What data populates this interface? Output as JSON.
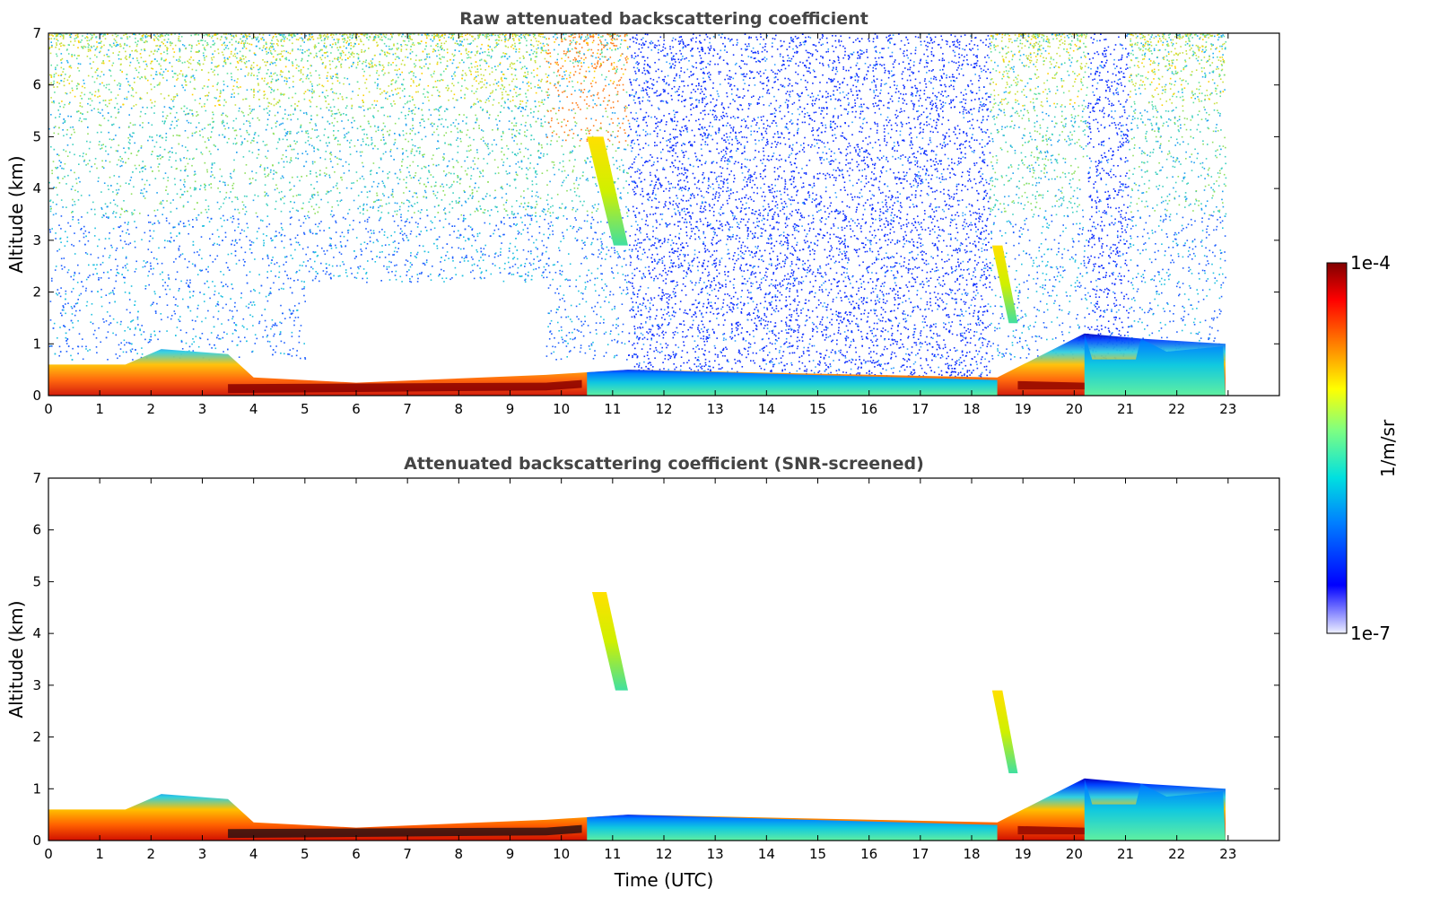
{
  "chart_data": [
    {
      "type": "heatmap",
      "title": "Raw attenuated backscattering coefficient",
      "xlabel": "",
      "ylabel": "Altitude (km)",
      "xlim": [
        0,
        24
      ],
      "ylim": [
        0,
        7
      ],
      "x_ticks": [
        "0",
        "1",
        "2",
        "3",
        "4",
        "5",
        "6",
        "7",
        "8",
        "9",
        "10",
        "11",
        "12",
        "13",
        "14",
        "15",
        "16",
        "17",
        "18",
        "19",
        "20",
        "21",
        "22",
        "23"
      ],
      "y_ticks": [
        "0",
        "1",
        "2",
        "3",
        "4",
        "5",
        "6",
        "7"
      ],
      "data_end_hour": 22.95,
      "boundary_layer": [
        {
          "t": 0,
          "top_km": 0.6
        },
        {
          "t": 1.5,
          "top_km": 0.6
        },
        {
          "t": 2.2,
          "top_km": 0.9
        },
        {
          "t": 3.5,
          "top_km": 0.8
        },
        {
          "t": 4,
          "top_km": 0.35
        },
        {
          "t": 6,
          "top_km": 0.25
        },
        {
          "t": 9.7,
          "top_km": 0.4
        },
        {
          "t": 11.3,
          "top_km": 0.5
        },
        {
          "t": 18.5,
          "top_km": 0.35
        },
        {
          "t": 20.2,
          "top_km": 1.2
        },
        {
          "t": 21.3,
          "top_km": 1.1
        },
        {
          "t": 22.95,
          "top_km": 1.0
        }
      ],
      "noise_regions": [
        {
          "start_h": 0,
          "end_h": 9.7,
          "level": "high"
        },
        {
          "start_h": 9.7,
          "end_h": 11.3,
          "level": "high"
        },
        {
          "start_h": 11.3,
          "end_h": 18.35,
          "level": "low"
        },
        {
          "start_h": 18.35,
          "end_h": 20.25,
          "level": "high"
        },
        {
          "start_h": 20.25,
          "end_h": 21.05,
          "level": "low"
        },
        {
          "start_h": 21.05,
          "end_h": 22.95,
          "level": "high"
        }
      ],
      "cloud_features": [
        {
          "t_start": 10.5,
          "t_end": 11.3,
          "alt_top_km": 5.0,
          "alt_bottom_km": 2.9
        },
        {
          "t_start": 18.4,
          "t_end": 18.9,
          "alt_top_km": 2.9,
          "alt_bottom_km": 1.4
        }
      ]
    },
    {
      "type": "heatmap",
      "title": "Attenuated backscattering coefficient (SNR-screened)",
      "xlabel": "Time (UTC)",
      "ylabel": "Altitude (km)",
      "xlim": [
        0,
        24
      ],
      "ylim": [
        0,
        7
      ],
      "x_ticks": [
        "0",
        "1",
        "2",
        "3",
        "4",
        "5",
        "6",
        "7",
        "8",
        "9",
        "10",
        "11",
        "12",
        "13",
        "14",
        "15",
        "16",
        "17",
        "18",
        "19",
        "20",
        "21",
        "22",
        "23"
      ],
      "y_ticks": [
        "0",
        "1",
        "2",
        "3",
        "4",
        "5",
        "6",
        "7"
      ],
      "data_end_hour": 22.95,
      "cloud_features": [
        {
          "t_start": 10.6,
          "t_end": 11.3,
          "alt_top_km": 4.8,
          "alt_bottom_km": 2.9
        },
        {
          "t_start": 18.4,
          "t_end": 18.9,
          "alt_top_km": 2.9,
          "alt_bottom_km": 1.3
        }
      ]
    }
  ],
  "colorbar": {
    "label": "1/m/sr",
    "max_label": "1e-4",
    "min_label": "1e-7",
    "scale": "log",
    "colormap": [
      "#000080",
      "#0000ff",
      "#00aaff",
      "#00ffff",
      "#80ff80",
      "#ffff00",
      "#ff8000",
      "#ff0000",
      "#800000"
    ]
  }
}
